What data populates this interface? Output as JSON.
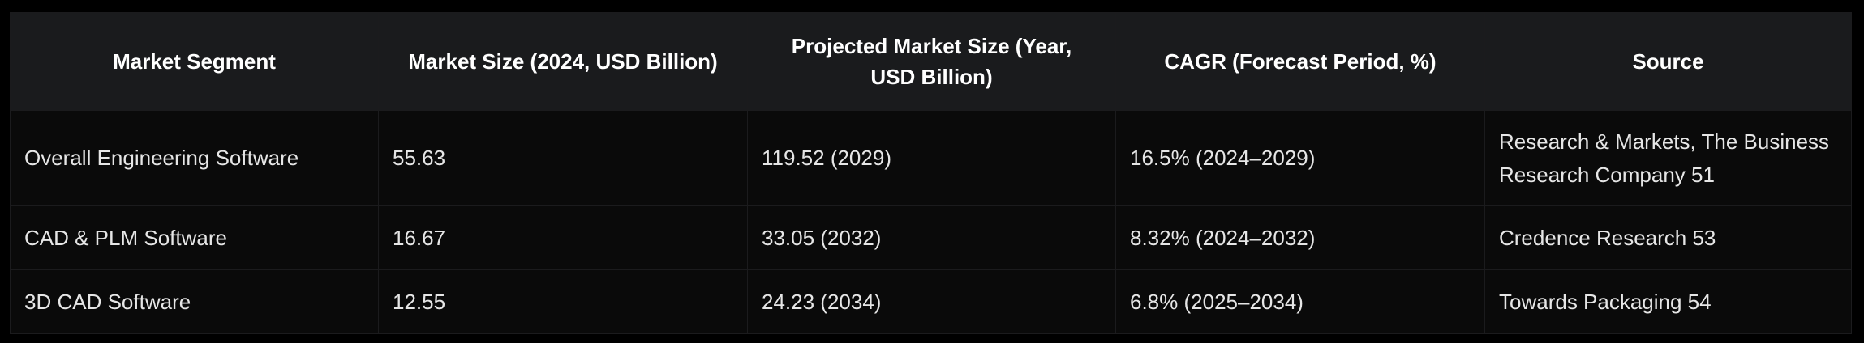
{
  "table": {
    "headers": [
      "Market Segment",
      "Market Size (2024, USD Billion)",
      "Projected Market Size (Year, USD Billion)",
      "CAGR (Forecast Period, %)",
      "Source"
    ],
    "rows": [
      [
        "Overall Engineering Software",
        "55.63",
        "119.52 (2029)",
        "16.5% (2024–2029)",
        "Research & Markets, The Business Research Company 51"
      ],
      [
        "CAD & PLM Software",
        "16.67",
        "33.05 (2032)",
        "8.32% (2024–2032)",
        "Credence Research 53"
      ],
      [
        "3D CAD Software",
        "12.55",
        "24.23 (2034)",
        "6.8% (2025–2034)",
        "Towards Packaging 54"
      ]
    ]
  }
}
